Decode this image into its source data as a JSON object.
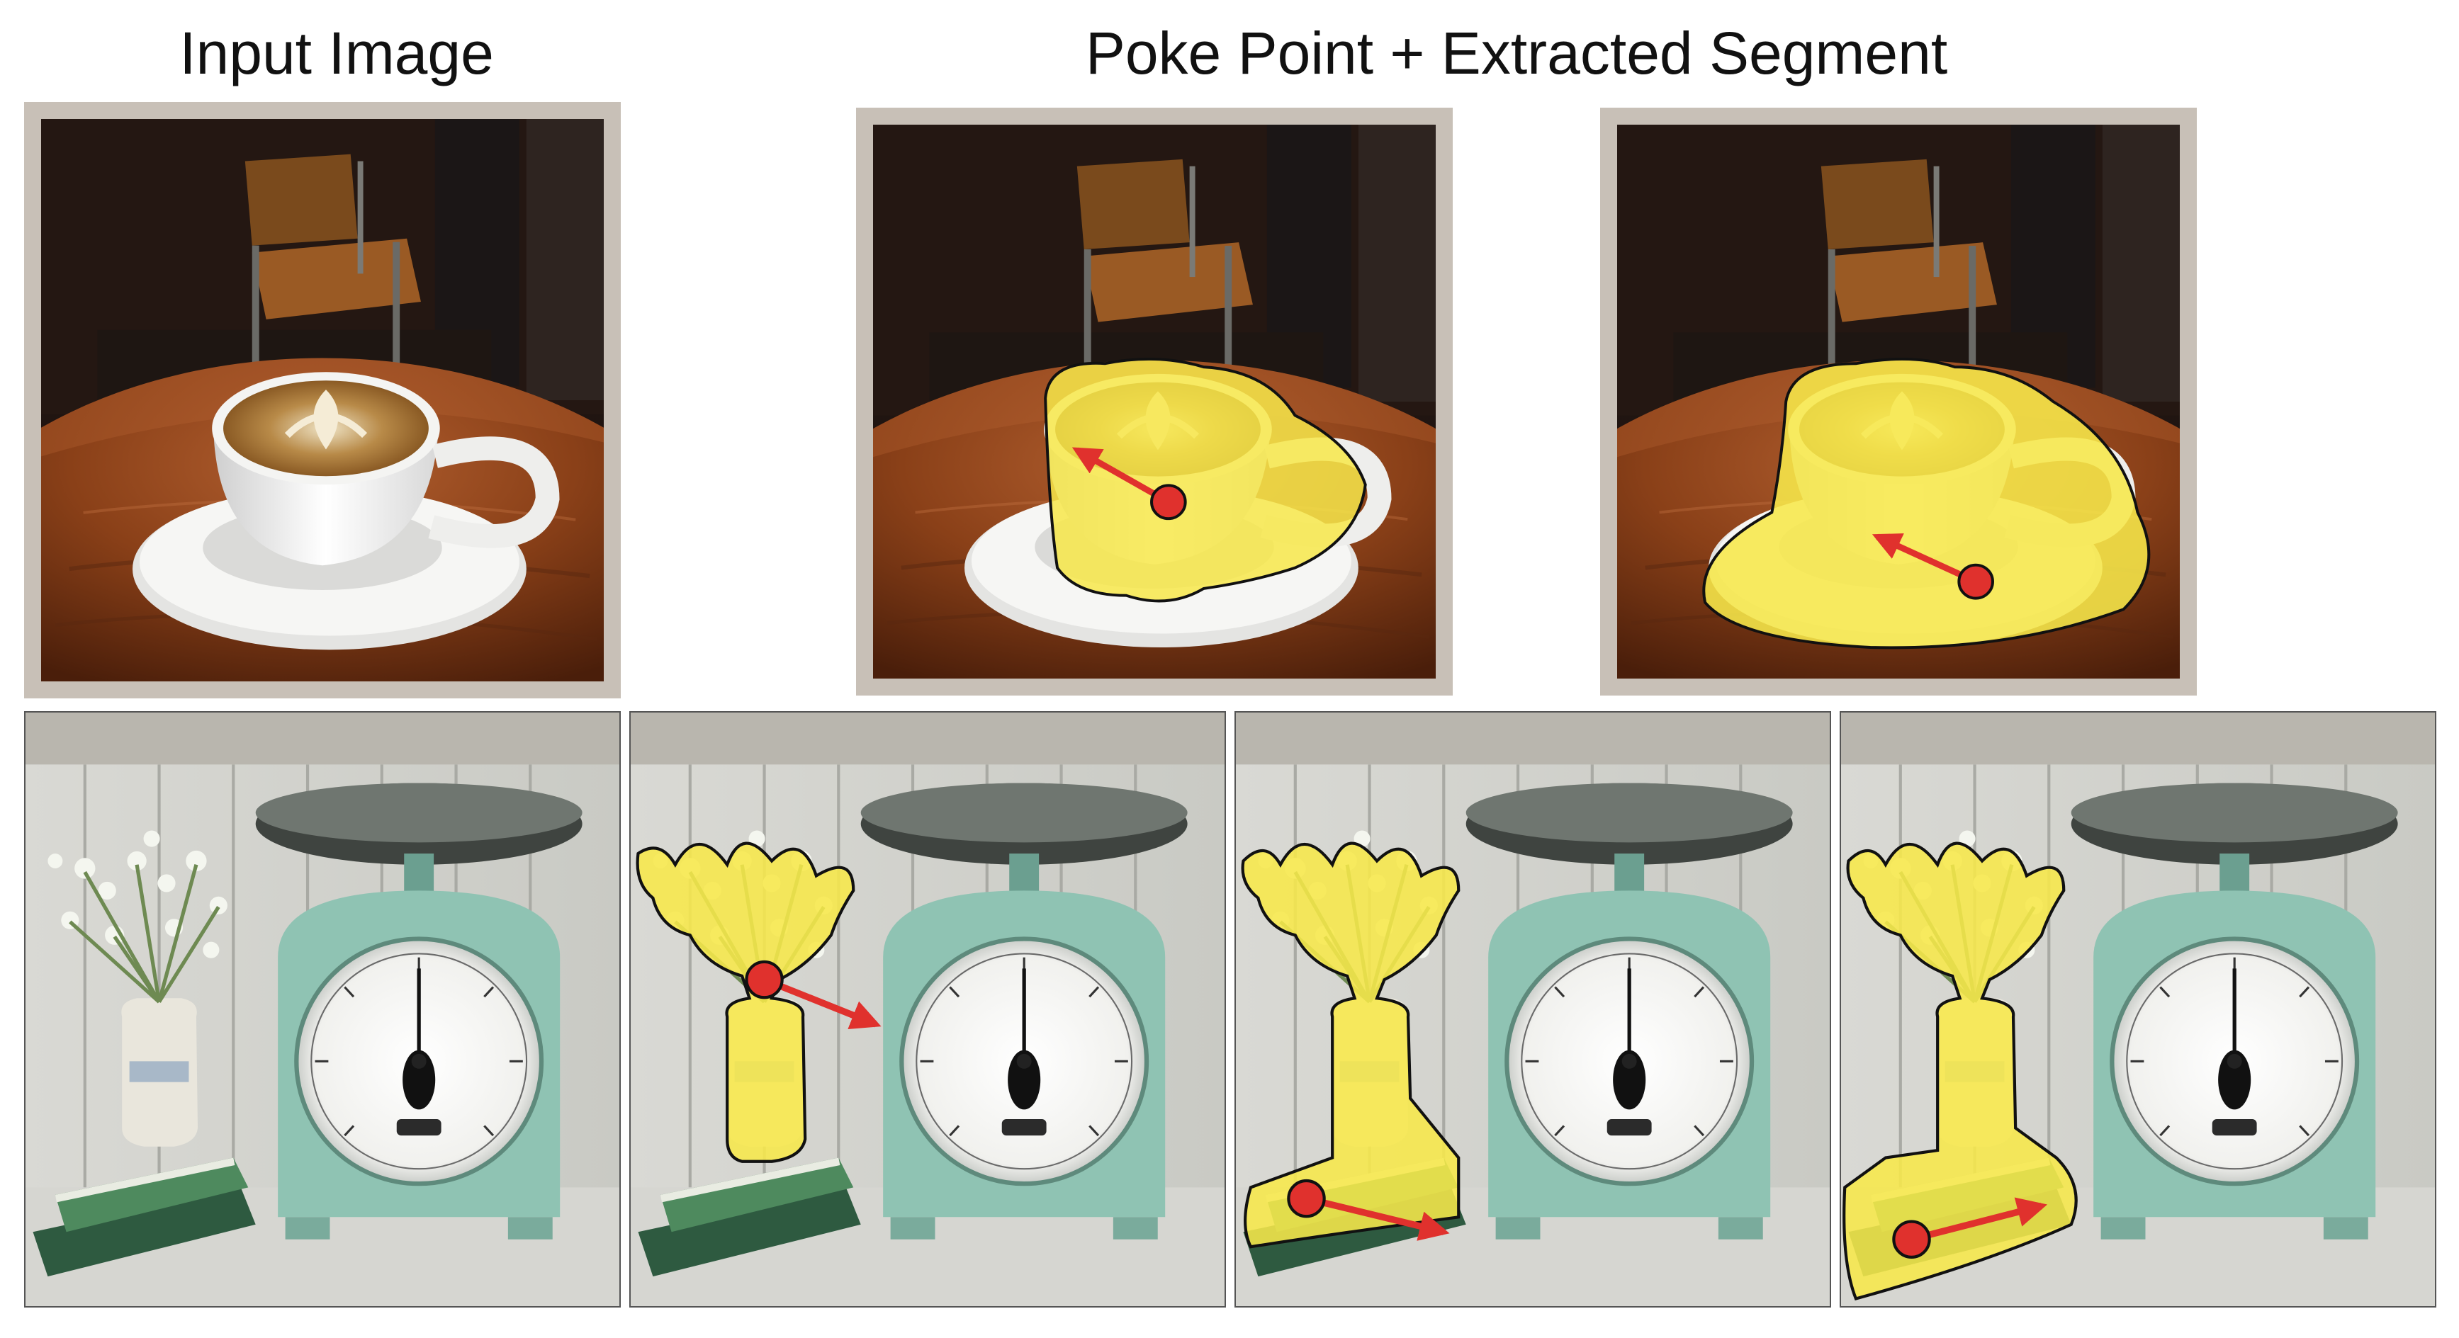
{
  "headings": {
    "input": "Input Image",
    "poke": "Poke Point + Extracted Segment"
  },
  "colors": {
    "segment_fill": "#f7e84a",
    "segment_outline": "#111111",
    "poke_marker": "#e0312d",
    "frame": "#c8c0b7"
  },
  "panels": [
    {
      "row": "coffee",
      "kind": "input",
      "segment": "none"
    },
    {
      "row": "coffee",
      "kind": "poke",
      "segment": "cup"
    },
    {
      "row": "coffee",
      "kind": "poke",
      "segment": "cup and saucer"
    },
    {
      "row": "scale",
      "kind": "input",
      "segment": "none"
    },
    {
      "row": "scale",
      "kind": "poke",
      "segment": "flowers and vase"
    },
    {
      "row": "scale",
      "kind": "poke",
      "segment": "flowers, vase and top book"
    },
    {
      "row": "scale",
      "kind": "poke",
      "segment": "flowers, vase and both books"
    }
  ]
}
